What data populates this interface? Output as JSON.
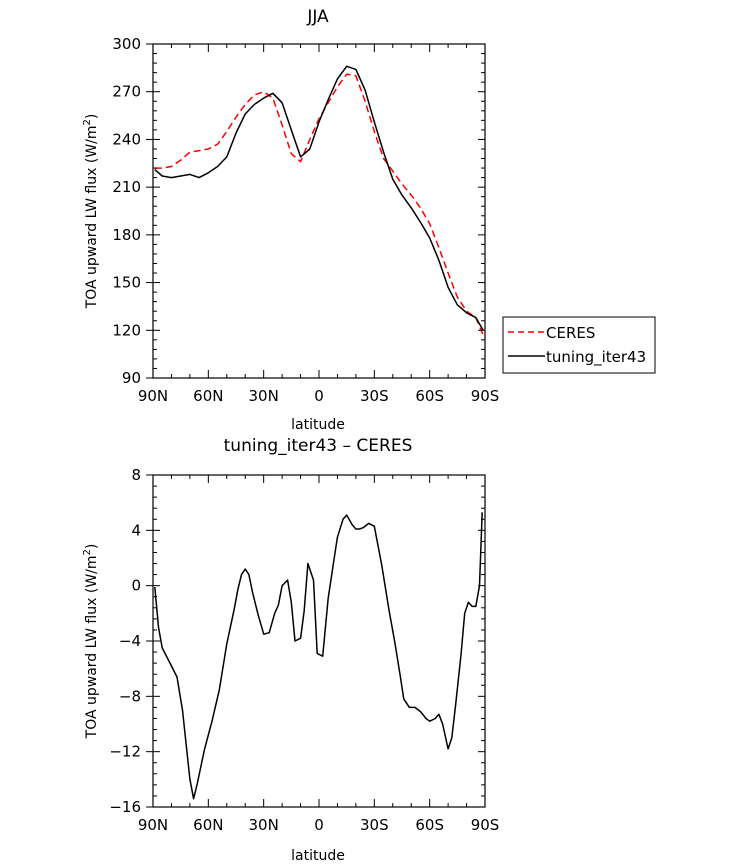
{
  "chart_data": [
    {
      "type": "line",
      "title": "JJA",
      "xlabel": "latitude",
      "ylabel": "TOA upward LW flux (W/m",
      "ylabel_sup": "2",
      "ylabel_close": ")",
      "xlim": [
        -90,
        90
      ],
      "ylim": [
        90,
        300
      ],
      "xticks": [
        -90,
        -60,
        -30,
        0,
        30,
        60,
        90
      ],
      "xtick_labels": [
        "90N",
        "60N",
        "30N",
        "0",
        "30S",
        "60S",
        "90S"
      ],
      "yticks": [
        90,
        120,
        150,
        180,
        210,
        240,
        270,
        300
      ],
      "ytick_labels": [
        "90",
        "120",
        "150",
        "180",
        "210",
        "240",
        "270",
        "300"
      ],
      "legend_position": "outside-right",
      "series": [
        {
          "name": "CERES",
          "color": "#ff0000",
          "dash": "dashed",
          "x": [
            -89,
            -85,
            -80,
            -75,
            -70,
            -65,
            -60,
            -55,
            -50,
            -45,
            -40,
            -35,
            -30,
            -25,
            -20,
            -15,
            -10,
            -5,
            0,
            5,
            10,
            15,
            20,
            25,
            30,
            35,
            40,
            45,
            50,
            55,
            60,
            65,
            70,
            75,
            80,
            85,
            89
          ],
          "values": [
            222,
            222,
            223,
            227,
            232,
            233,
            234,
            237,
            245,
            254,
            262,
            268,
            270,
            266,
            249,
            231,
            226,
            240,
            253,
            263,
            273,
            281,
            280,
            264,
            245,
            228,
            220,
            212,
            205,
            197,
            187,
            172,
            156,
            141,
            132,
            128,
            117
          ]
        },
        {
          "name": "tuning_iter43",
          "color": "#000000",
          "dash": "solid",
          "x": [
            -89,
            -85,
            -80,
            -75,
            -70,
            -65,
            -60,
            -55,
            -50,
            -45,
            -40,
            -35,
            -30,
            -25,
            -20,
            -15,
            -10,
            -5,
            0,
            5,
            10,
            15,
            20,
            25,
            30,
            35,
            40,
            45,
            50,
            55,
            60,
            65,
            70,
            75,
            80,
            85,
            89
          ],
          "values": [
            221,
            217,
            216,
            217,
            218,
            216,
            219,
            223,
            229,
            244,
            256,
            262,
            266,
            269,
            263,
            246,
            229,
            234,
            251,
            265,
            278,
            286,
            284,
            271,
            251,
            232,
            215,
            205,
            197,
            188,
            178,
            164,
            147,
            136,
            131,
            128,
            120
          ]
        }
      ]
    },
    {
      "type": "line",
      "title": "tuning_iter43 – CERES",
      "xlabel": "latitude",
      "ylabel": "TOA upward LW flux (W/m",
      "ylabel_sup": "2",
      "ylabel_close": ")",
      "xlim": [
        -90,
        90
      ],
      "ylim": [
        -16,
        8
      ],
      "xticks": [
        -90,
        -60,
        -30,
        0,
        30,
        60,
        90
      ],
      "xtick_labels": [
        "90N",
        "60N",
        "30N",
        "0",
        "30S",
        "60S",
        "90S"
      ],
      "yticks": [
        -16,
        -12,
        -8,
        -4,
        0,
        4,
        8
      ],
      "ytick_labels": [
        "−16",
        "−12",
        "−8",
        "−4",
        "0",
        "4",
        "8"
      ],
      "series": [
        {
          "name": "tuning_iter43",
          "color": "#000000",
          "dash": "solid",
          "x": [
            -89,
            -87,
            -85,
            -80,
            -77,
            -74,
            -70,
            -68,
            -66,
            -62,
            -58,
            -54,
            -50,
            -46,
            -44,
            -42,
            -40,
            -38,
            -36,
            -33,
            -30,
            -27,
            -24,
            -22,
            -20,
            -17,
            -15,
            -13,
            -10,
            -8,
            -6,
            -3,
            -1,
            2,
            5,
            8,
            10,
            13,
            15,
            18,
            20,
            22,
            24,
            27,
            30,
            34,
            38,
            41,
            44,
            46,
            49,
            52,
            55,
            58,
            60,
            63,
            65,
            67,
            70,
            72,
            74,
            77,
            79,
            81,
            83,
            85,
            87,
            88.5
          ],
          "values": [
            -0.1,
            -3,
            -4.5,
            -5.8,
            -6.6,
            -9,
            -14,
            -15.4,
            -14.3,
            -11.8,
            -9.8,
            -7.5,
            -4.2,
            -1.7,
            -0.3,
            0.8,
            1.2,
            0.8,
            -0.5,
            -2.1,
            -3.5,
            -3.4,
            -2,
            -1.4,
            0,
            0.4,
            -1.2,
            -4,
            -3.8,
            -1.8,
            1.6,
            0.4,
            -4.9,
            -5.1,
            -0.9,
            1.8,
            3.5,
            4.8,
            5.1,
            4.4,
            4.1,
            4.1,
            4.2,
            4.5,
            4.3,
            1.5,
            -1.8,
            -4,
            -6.5,
            -8.2,
            -8.8,
            -8.8,
            -9.1,
            -9.6,
            -9.8,
            -9.6,
            -9.3,
            -10,
            -11.8,
            -11,
            -8.7,
            -5,
            -2,
            -1.2,
            -1.5,
            -1.5,
            0,
            5.3
          ]
        }
      ]
    }
  ]
}
